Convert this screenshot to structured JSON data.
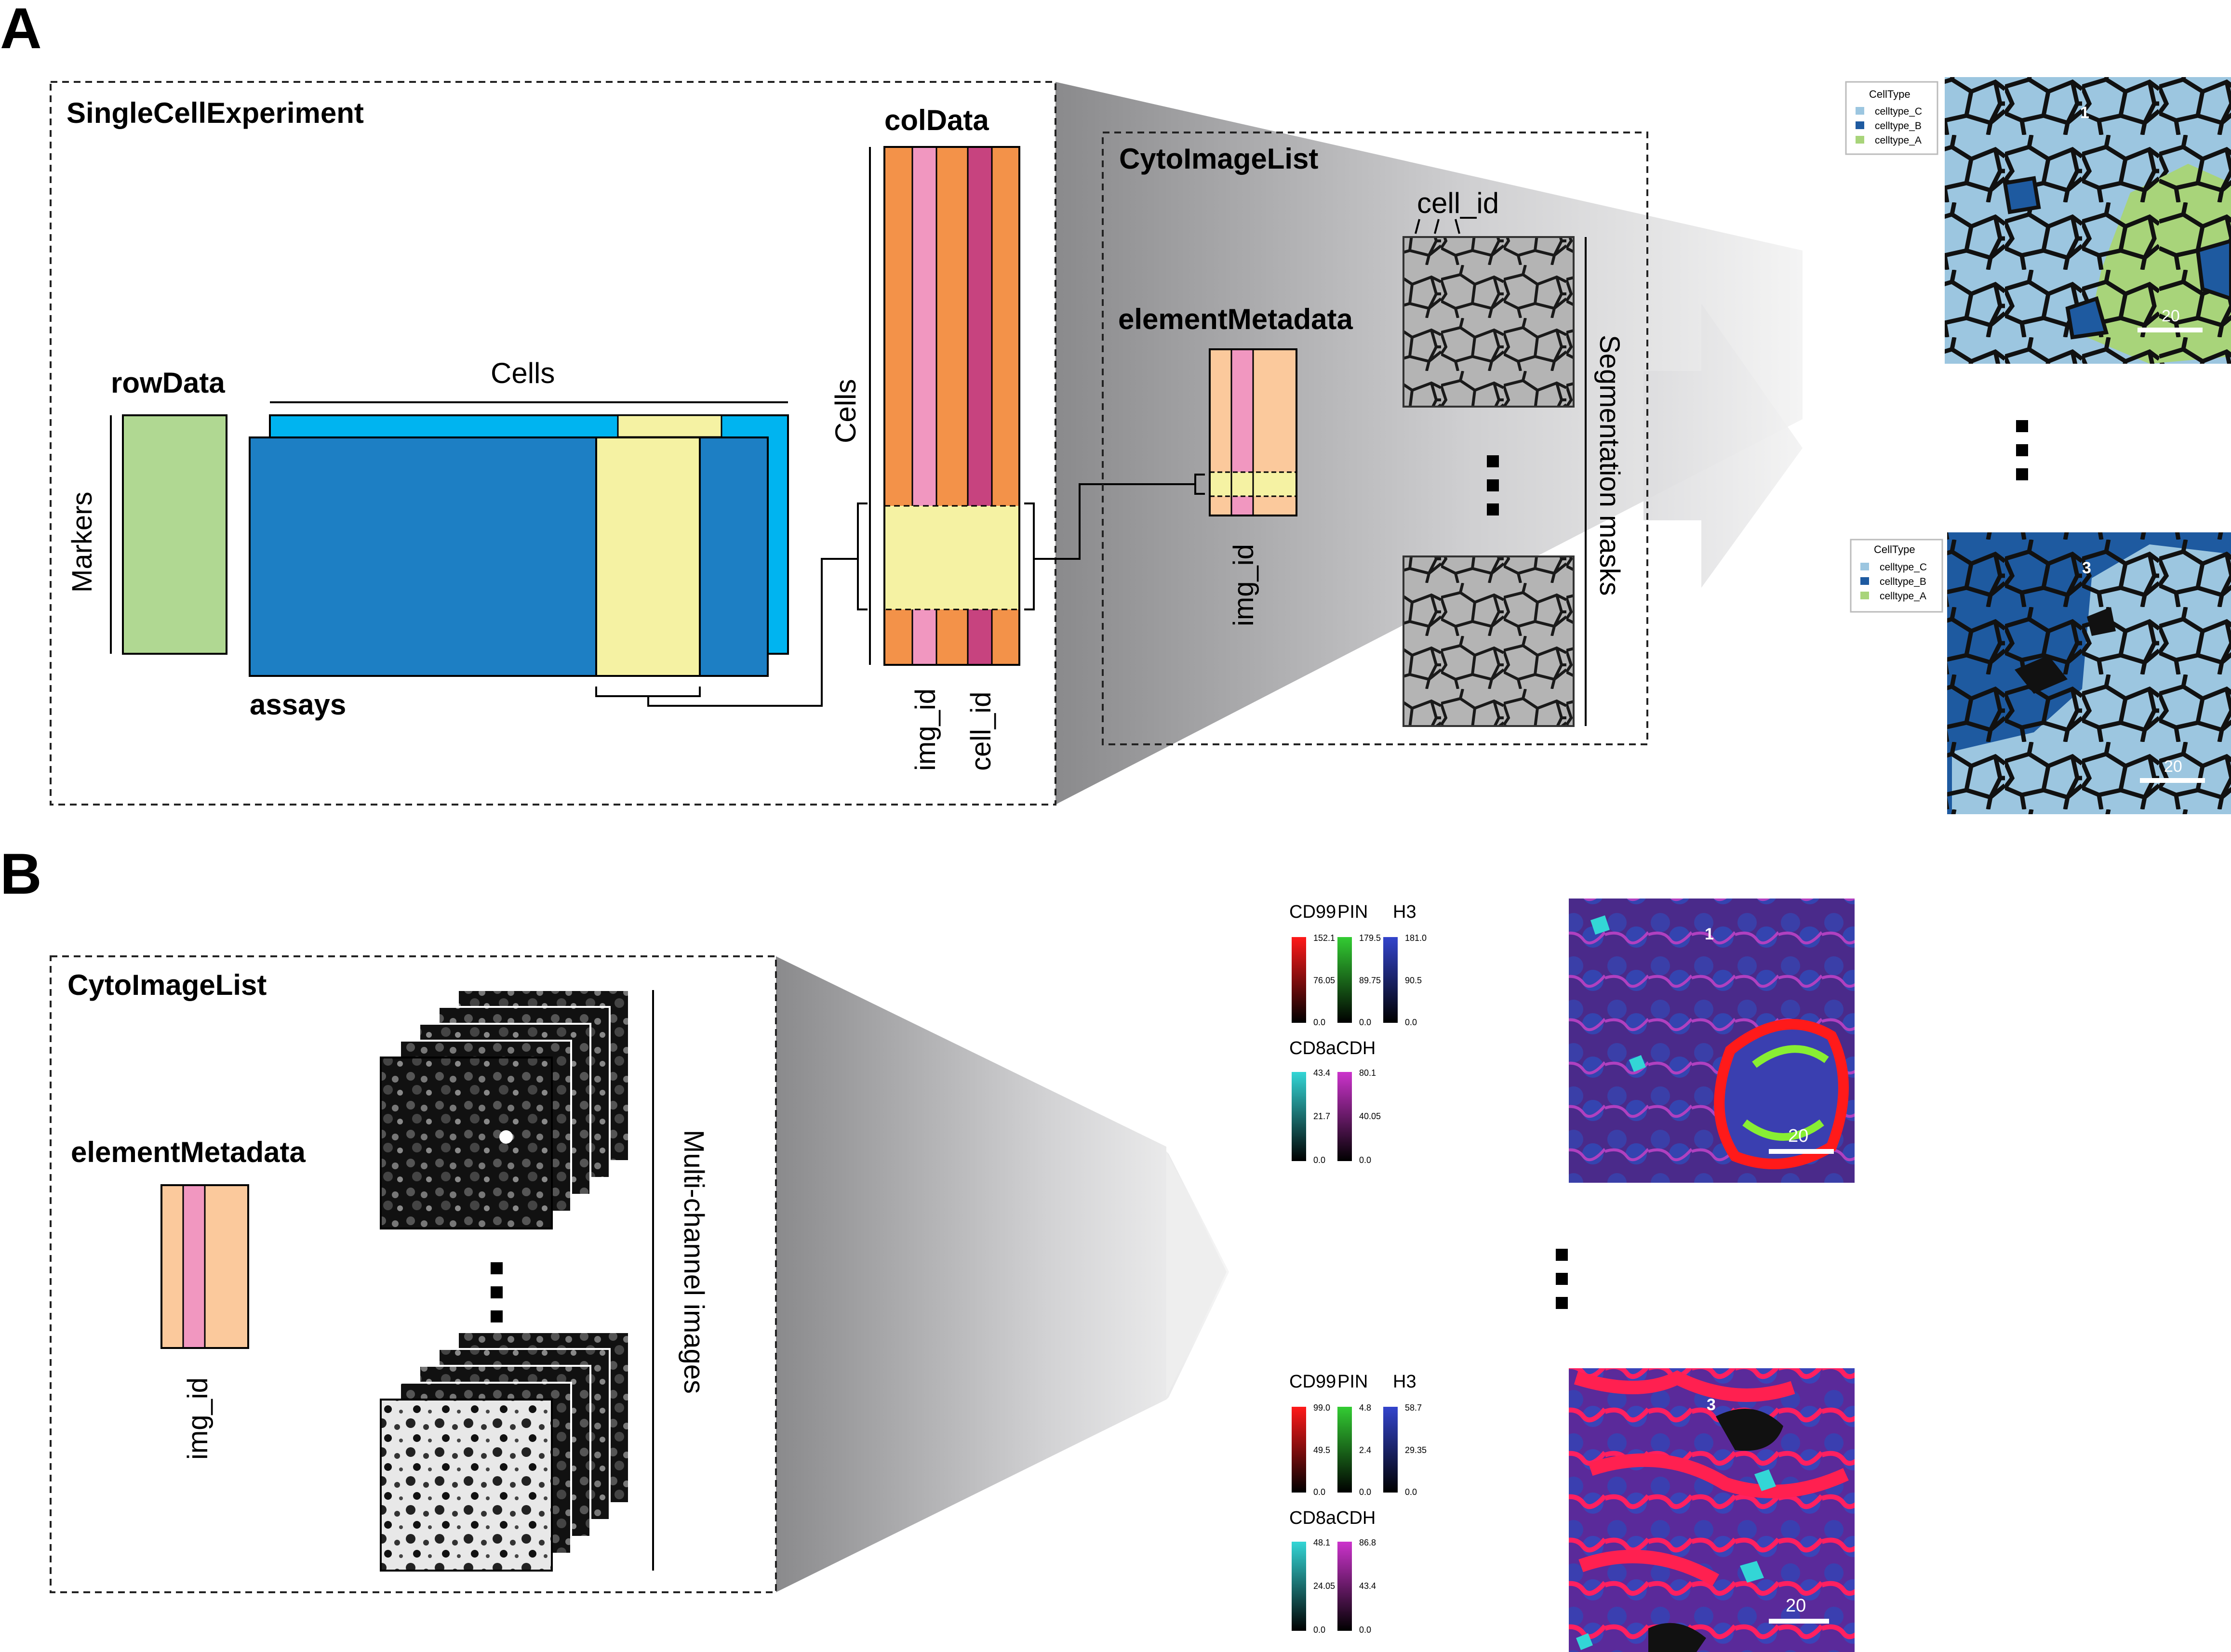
{
  "panel_a": {
    "letter": "A",
    "sce_title": "SingleCellExperiment",
    "rowdata_label": "rowData",
    "markers_label": "Markers",
    "cells_label_top": "Cells",
    "assays_label": "assays",
    "coldata_label": "colData",
    "cells_label_side": "Cells",
    "col_labels": [
      "img_id",
      "cell_id"
    ],
    "cytoimagelist_title": "CytoImageList",
    "elementmetadata_label": "elementMetadata",
    "img_id_label": "img_id",
    "cell_id_label": "cell_id",
    "segmentation_label": "Segmentation masks",
    "legends": [
      {
        "title": "CellType",
        "entries": [
          "celltype_C",
          "celltype_B",
          "celltype_A"
        ]
      },
      {
        "title": "CellType",
        "entries": [
          "celltype_C",
          "celltype_B",
          "celltype_A"
        ]
      }
    ],
    "mask_numbers": [
      "1",
      "3"
    ],
    "scale_labels": [
      "20",
      "20"
    ],
    "colors": {
      "celltype_C": "#9cc6e0",
      "celltype_B": "#1e5aa0",
      "celltype_A": "#a8d47a"
    }
  },
  "panel_b": {
    "letter": "B",
    "cytoimagelist_title": "CytoImageList",
    "elementmetadata_label": "elementMetadata",
    "img_id_label": "img_id",
    "multichannel_label": "Multi-channel images",
    "colorbar_sets": [
      {
        "header_row1": [
          "CD99",
          "PIN",
          "H3"
        ],
        "header_row2": [
          "CD8a",
          "CDH"
        ],
        "row1": [
          {
            "max": "152.1",
            "mid": "76.05",
            "min": "0.0",
            "color": "#ff1a1a"
          },
          {
            "max": "179.5",
            "mid": "89.75",
            "min": "0.0",
            "color": "#33cc33"
          },
          {
            "max": "181.0",
            "mid": "90.5",
            "min": "0.0",
            "color": "#3344cc"
          }
        ],
        "row2": [
          {
            "max": "43.4",
            "mid": "21.7",
            "min": "0.0",
            "color": "#33d6d6"
          },
          {
            "max": "80.1",
            "mid": "40.05",
            "min": "0.0",
            "color": "#cc33cc"
          }
        ]
      },
      {
        "header_row1": [
          "CD99",
          "PIN",
          "H3"
        ],
        "header_row2": [
          "CD8a",
          "CDH"
        ],
        "row1": [
          {
            "max": "99.0",
            "mid": "49.5",
            "min": "0.0",
            "color": "#ff1a1a"
          },
          {
            "max": "4.8",
            "mid": "2.4",
            "min": "0.0",
            "color": "#33cc33"
          },
          {
            "max": "58.7",
            "mid": "29.35",
            "min": "0.0",
            "color": "#3344cc"
          }
        ],
        "row2": [
          {
            "max": "48.1",
            "mid": "24.05",
            "min": "0.0",
            "color": "#33d6d6"
          },
          {
            "max": "86.8",
            "mid": "43.4",
            "min": "0.0",
            "color": "#cc33cc"
          }
        ]
      }
    ],
    "image_numbers": [
      "1",
      "3"
    ],
    "scale_labels": [
      "20",
      "20"
    ]
  }
}
